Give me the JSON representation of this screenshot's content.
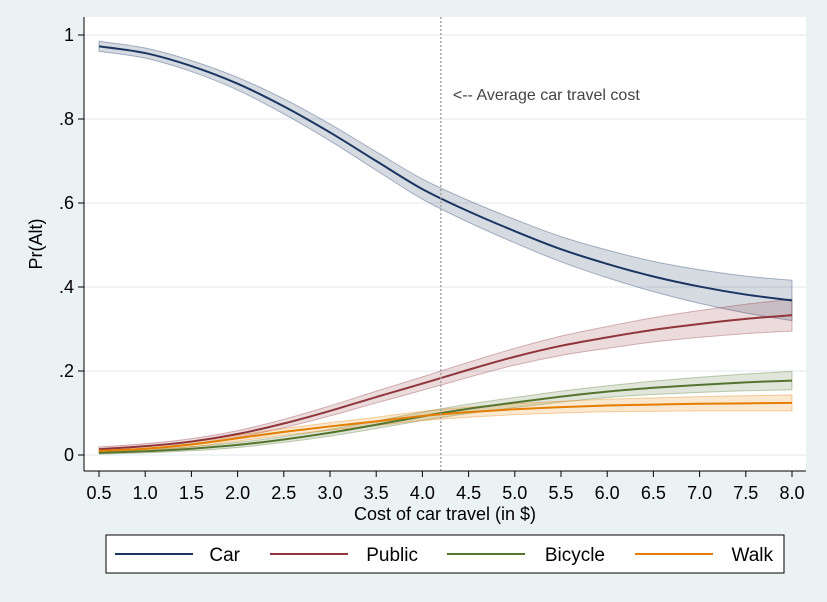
{
  "chart_data": {
    "type": "line",
    "xlabel": "Cost of car travel (in $)",
    "ylabel": "Pr(Alt)",
    "xlim": [
      0.5,
      8.0
    ],
    "ylim": [
      0,
      1
    ],
    "x_ticks": [
      0.5,
      1.0,
      1.5,
      2.0,
      2.5,
      3.0,
      3.5,
      4.0,
      4.5,
      5.0,
      5.5,
      6.0,
      6.5,
      7.0,
      7.5,
      8.0
    ],
    "x_tick_labels": [
      "0.5",
      "1.0",
      "1.5",
      "2.0",
      "2.5",
      "3.0",
      "3.5",
      "4.0",
      "4.5",
      "5.0",
      "5.5",
      "6.0",
      "6.5",
      "7.0",
      "7.5",
      "8.0"
    ],
    "y_ticks": [
      0,
      0.2,
      0.4,
      0.6,
      0.8,
      1
    ],
    "y_tick_labels": [
      "0",
      ".2",
      ".4",
      ".6",
      ".8",
      "1"
    ],
    "grid": true,
    "legend_position": "bottom",
    "reference_line": {
      "x": 4.2,
      "label": "<-- Average car travel cost"
    },
    "x": [
      0.5,
      1.0,
      1.5,
      2.0,
      2.5,
      3.0,
      3.5,
      4.0,
      4.5,
      5.0,
      5.5,
      6.0,
      6.5,
      7.0,
      7.5,
      8.0
    ],
    "series": [
      {
        "name": "Car",
        "color": "#1a3561",
        "values": [
          0.973,
          0.957,
          0.926,
          0.884,
          0.83,
          0.768,
          0.7,
          0.633,
          0.58,
          0.533,
          0.49,
          0.455,
          0.425,
          0.401,
          0.382,
          0.368
        ],
        "ci_halfwidth": [
          0.012,
          0.012,
          0.013,
          0.015,
          0.018,
          0.02,
          0.022,
          0.024,
          0.026,
          0.028,
          0.03,
          0.033,
          0.036,
          0.04,
          0.044,
          0.048
        ]
      },
      {
        "name": "Public",
        "color": "#90353b",
        "values": [
          0.014,
          0.021,
          0.032,
          0.05,
          0.075,
          0.105,
          0.138,
          0.17,
          0.203,
          0.234,
          0.26,
          0.28,
          0.298,
          0.312,
          0.324,
          0.333
        ],
        "ci_halfwidth": [
          0.005,
          0.006,
          0.007,
          0.008,
          0.01,
          0.012,
          0.014,
          0.016,
          0.018,
          0.02,
          0.023,
          0.026,
          0.029,
          0.032,
          0.035,
          0.038
        ]
      },
      {
        "name": "Bicycle",
        "color": "#55752f",
        "values": [
          0.005,
          0.009,
          0.015,
          0.024,
          0.037,
          0.053,
          0.072,
          0.092,
          0.11,
          0.125,
          0.139,
          0.151,
          0.16,
          0.167,
          0.173,
          0.177
        ],
        "ci_halfwidth": [
          0.003,
          0.004,
          0.005,
          0.006,
          0.007,
          0.008,
          0.009,
          0.01,
          0.011,
          0.012,
          0.013,
          0.014,
          0.016,
          0.018,
          0.02,
          0.022
        ]
      },
      {
        "name": "Walk",
        "color": "#e37e00",
        "values": [
          0.01,
          0.015,
          0.025,
          0.04,
          0.055,
          0.068,
          0.08,
          0.093,
          0.102,
          0.109,
          0.114,
          0.118,
          0.12,
          0.122,
          0.123,
          0.124
        ],
        "ci_halfwidth": [
          0.004,
          0.005,
          0.006,
          0.007,
          0.008,
          0.009,
          0.01,
          0.011,
          0.012,
          0.013,
          0.014,
          0.015,
          0.016,
          0.017,
          0.018,
          0.019
        ]
      }
    ]
  }
}
